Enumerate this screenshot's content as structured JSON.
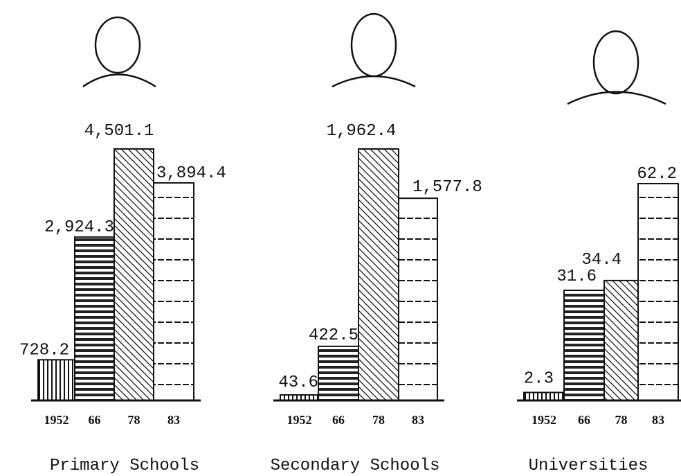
{
  "chart_data": [
    {
      "type": "bar",
      "title": "Primary Schools",
      "categories": [
        "1952",
        "66",
        "78",
        "83"
      ],
      "values": [
        728.2,
        2924.3,
        4501.1,
        3894.4
      ],
      "value_labels": [
        "728.2",
        "2,924.3",
        "4,501.1",
        "3,894.4"
      ]
    },
    {
      "type": "bar",
      "title": "Secondary Schools",
      "categories": [
        "1952",
        "66",
        "78",
        "83"
      ],
      "values": [
        43.6,
        422.5,
        1962.4,
        1577.8
      ],
      "value_labels": [
        "43.6",
        "422.5",
        "1,962.4",
        "1,577.8"
      ]
    },
    {
      "type": "bar",
      "title": "Universities",
      "categories": [
        "1952",
        "66",
        "78",
        "83"
      ],
      "values": [
        2.3,
        31.6,
        34.4,
        62.2
      ],
      "value_labels": [
        "2.3",
        "31.6",
        "34.4",
        "62.2"
      ]
    }
  ]
}
